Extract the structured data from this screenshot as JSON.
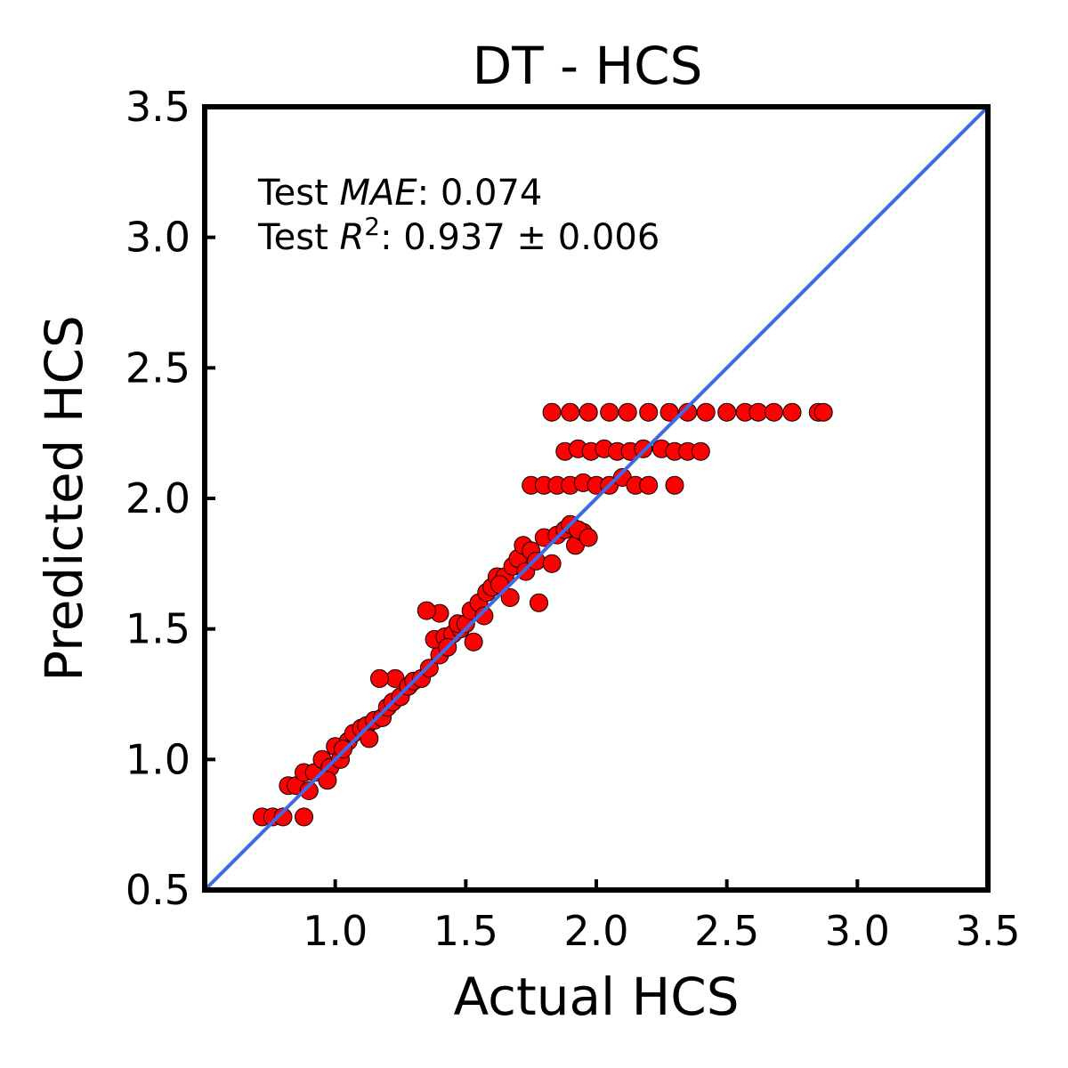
{
  "chart_data": {
    "type": "scatter",
    "title": "DT - HCS",
    "xlabel": "Actual HCS",
    "ylabel": "Predicted HCS",
    "xlim": [
      0.5,
      3.5
    ],
    "ylim": [
      0.5,
      3.5
    ],
    "x_ticks": [
      "1.0",
      "1.5",
      "2.0",
      "2.5",
      "3.0",
      "3.5"
    ],
    "y_ticks": [
      "0.5",
      "1.0",
      "1.5",
      "2.0",
      "2.5",
      "3.0",
      "3.5"
    ],
    "grid": false,
    "legend": "none",
    "annotations": {
      "mae_prefix": "Test ",
      "mae_symbol": "MAE",
      "mae_value": ": 0.074",
      "r2_prefix": "Test ",
      "r2_symbol": "R",
      "r2_exponent": "2",
      "r2_value": ": 0.937 ± 0.006"
    },
    "reference_line": {
      "from": [
        0.5,
        0.5
      ],
      "to": [
        3.5,
        3.5
      ],
      "color": "#4169e1"
    },
    "marker_color": "#ff0000",
    "marker_edge_color": "#000000",
    "series": [
      {
        "x": [
          0.72,
          0.76,
          0.8,
          0.88,
          0.82,
          0.85,
          0.88,
          0.92,
          0.9,
          0.95,
          0.98,
          0.97,
          1.0,
          1.02,
          1.05,
          1.03,
          1.07,
          1.1,
          1.12,
          1.15,
          1.18,
          1.13,
          1.2,
          1.22,
          1.25,
          1.23,
          1.17,
          1.28,
          1.3,
          1.33,
          1.36,
          1.4,
          1.38,
          1.42,
          1.45,
          1.48,
          1.4,
          1.35,
          1.43,
          1.47,
          1.5,
          1.52,
          1.55,
          1.58,
          1.6,
          1.62,
          1.65,
          1.68,
          1.7,
          1.72,
          1.75,
          1.57,
          1.53,
          1.63,
          1.67,
          1.73,
          1.78,
          1.8,
          1.85,
          1.88,
          1.9,
          1.92,
          1.95,
          1.77,
          1.83,
          1.93,
          1.97,
          1.75,
          1.8,
          1.85,
          1.9,
          1.95,
          2.0,
          2.05,
          2.1,
          2.15,
          2.2,
          2.3,
          1.88,
          1.93,
          1.98,
          2.03,
          2.08,
          2.13,
          2.18,
          2.25,
          2.3,
          2.35,
          2.4,
          1.83,
          1.9,
          1.97,
          2.05,
          2.12,
          2.2,
          2.28,
          2.35,
          2.42,
          2.5,
          2.57,
          2.62,
          2.68,
          2.75,
          2.85,
          2.87
        ],
        "y": [
          0.78,
          0.78,
          0.78,
          0.78,
          0.9,
          0.9,
          0.95,
          0.95,
          0.88,
          1.0,
          0.97,
          0.92,
          1.05,
          1.0,
          1.07,
          1.04,
          1.1,
          1.12,
          1.13,
          1.15,
          1.16,
          1.08,
          1.2,
          1.22,
          1.24,
          1.31,
          1.31,
          1.28,
          1.3,
          1.31,
          1.35,
          1.4,
          1.46,
          1.47,
          1.48,
          1.5,
          1.56,
          1.57,
          1.43,
          1.52,
          1.52,
          1.57,
          1.6,
          1.64,
          1.66,
          1.7,
          1.7,
          1.74,
          1.77,
          1.82,
          1.8,
          1.55,
          1.45,
          1.67,
          1.62,
          1.72,
          1.6,
          1.85,
          1.86,
          1.88,
          1.9,
          1.82,
          1.87,
          1.76,
          1.75,
          1.88,
          1.85,
          2.05,
          2.05,
          2.05,
          2.05,
          2.06,
          2.05,
          2.05,
          2.08,
          2.05,
          2.05,
          2.05,
          2.18,
          2.19,
          2.18,
          2.19,
          2.18,
          2.18,
          2.19,
          2.19,
          2.18,
          2.18,
          2.18,
          2.33,
          2.33,
          2.33,
          2.33,
          2.33,
          2.33,
          2.33,
          2.33,
          2.33,
          2.33,
          2.33,
          2.33,
          2.33,
          2.33,
          2.33,
          2.33
        ]
      }
    ]
  }
}
